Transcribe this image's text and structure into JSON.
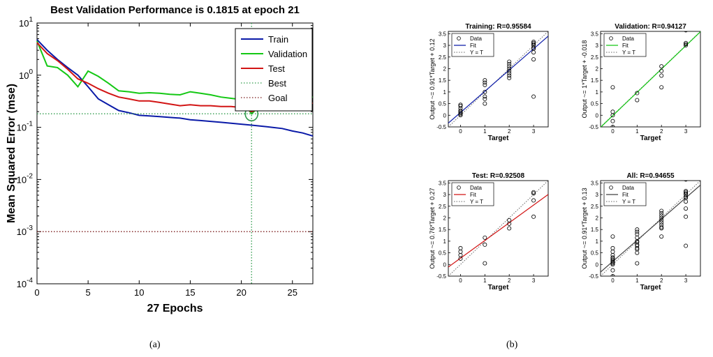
{
  "captions": [
    "(a)",
    "(b)"
  ],
  "colors": {
    "train": "#0a1aa8",
    "validation": "#14c814",
    "test": "#d21414",
    "best": "#2e9a4a",
    "goal": "#7a1a1a",
    "all": "#404040",
    "data_marker": "#000000"
  },
  "chart_data": [
    {
      "id": "performance",
      "type": "line",
      "title": "Best Validation Performance is 0.1815 at epoch 21",
      "xlabel": "27 Epochs",
      "ylabel": "Mean Squared Error  (mse)",
      "xlim": [
        0,
        27
      ],
      "ylim": [
        0.0001,
        10
      ],
      "yscale": "log",
      "xticks": [
        0,
        5,
        10,
        15,
        20,
        25
      ],
      "yticks": [
        {
          "base": "10",
          "exp": "-4",
          "value": 0.0001
        },
        {
          "base": "10",
          "exp": "-3",
          "value": 0.001
        },
        {
          "base": "10",
          "exp": "-2",
          "value": 0.01
        },
        {
          "base": "10",
          "exp": "-1",
          "value": 0.1
        },
        {
          "base": "10",
          "exp": "0",
          "value": 1
        },
        {
          "base": "10",
          "exp": "1",
          "value": 10
        }
      ],
      "legend_position": "top-right",
      "series": [
        {
          "name": "Train",
          "key": "train",
          "style": "solid",
          "x": [
            0,
            1,
            2,
            3,
            4,
            5,
            6,
            7,
            8,
            9,
            10,
            11,
            12,
            13,
            14,
            15,
            16,
            17,
            18,
            19,
            20,
            21,
            22,
            23,
            24,
            25,
            26,
            27
          ],
          "y": [
            4.8,
            3.0,
            2.0,
            1.4,
            1.0,
            0.6,
            0.35,
            0.27,
            0.21,
            0.19,
            0.17,
            0.165,
            0.16,
            0.155,
            0.15,
            0.14,
            0.135,
            0.13,
            0.125,
            0.12,
            0.115,
            0.11,
            0.105,
            0.1,
            0.095,
            0.085,
            0.078,
            0.068
          ]
        },
        {
          "name": "Validation",
          "key": "validation",
          "style": "solid",
          "x": [
            0,
            1,
            2,
            3,
            4,
            5,
            6,
            7,
            8,
            9,
            10,
            11,
            12,
            13,
            14,
            15,
            16,
            17,
            18,
            19,
            20,
            21,
            22,
            23,
            24,
            25,
            26,
            27
          ],
          "y": [
            4.5,
            1.5,
            1.4,
            1.0,
            0.6,
            1.2,
            0.95,
            0.7,
            0.5,
            0.48,
            0.45,
            0.46,
            0.45,
            0.43,
            0.42,
            0.48,
            0.45,
            0.42,
            0.38,
            0.36,
            0.34,
            0.1815,
            0.28,
            0.32,
            0.34,
            0.37,
            0.37,
            0.38
          ]
        },
        {
          "name": "Test",
          "key": "test",
          "style": "solid",
          "x": [
            0,
            1,
            2,
            3,
            4,
            5,
            6,
            7,
            8,
            9,
            10,
            11,
            12,
            13,
            14,
            15,
            16,
            17,
            18,
            19,
            20,
            21,
            22,
            23,
            24,
            25,
            26,
            27
          ],
          "y": [
            4.2,
            2.6,
            1.9,
            1.3,
            0.85,
            0.7,
            0.55,
            0.45,
            0.38,
            0.35,
            0.32,
            0.32,
            0.3,
            0.28,
            0.26,
            0.27,
            0.26,
            0.26,
            0.25,
            0.25,
            0.24,
            0.2,
            0.23,
            0.25,
            0.27,
            0.29,
            0.29,
            0.29
          ]
        },
        {
          "name": "Best",
          "key": "best",
          "style": "dotted",
          "x": [
            0,
            27
          ],
          "y": [
            0.1815,
            0.1815
          ]
        },
        {
          "name": "Goal",
          "key": "goal",
          "style": "dotted",
          "x": [
            0,
            27
          ],
          "y": [
            0.001,
            0.001
          ]
        }
      ],
      "best_marker": {
        "x": 21,
        "y": 0.1815
      }
    },
    {
      "id": "training",
      "type": "scatter",
      "title": "Training: R=0.95584",
      "xlabel": "Target",
      "ylabel": "Output ~= 0.91*Target + 0.12",
      "xlim": [
        -0.5,
        3.6
      ],
      "ylim": [
        -0.5,
        3.6
      ],
      "xticks": [
        0,
        1,
        2,
        3
      ],
      "yticks": [
        -0.5,
        0,
        0.5,
        1,
        1.5,
        2,
        2.5,
        3,
        3.5
      ],
      "legend": [
        "Data",
        "Fit",
        "Y = T"
      ],
      "fit": {
        "slope": 0.91,
        "intercept": 0.12,
        "color_key": "train"
      },
      "points": [
        [
          0,
          0
        ],
        [
          0,
          0.05
        ],
        [
          0,
          0.1
        ],
        [
          0,
          0.15
        ],
        [
          0,
          0.2
        ],
        [
          0,
          0.3
        ],
        [
          0,
          0.4
        ],
        [
          0,
          0.45
        ],
        [
          1,
          0.5
        ],
        [
          1,
          0.7
        ],
        [
          1,
          0.8
        ],
        [
          1,
          1.0
        ],
        [
          1,
          1.3
        ],
        [
          1,
          1.4
        ],
        [
          1,
          1.5
        ],
        [
          2,
          1.6
        ],
        [
          2,
          1.7
        ],
        [
          2,
          1.8
        ],
        [
          2,
          1.9
        ],
        [
          2,
          2.0
        ],
        [
          2,
          2.1
        ],
        [
          2,
          2.2
        ],
        [
          2,
          2.3
        ],
        [
          3,
          0.8
        ],
        [
          3,
          2.4
        ],
        [
          3,
          2.7
        ],
        [
          3,
          2.85
        ],
        [
          3,
          2.9
        ],
        [
          3,
          3.0
        ],
        [
          3,
          3.05
        ],
        [
          3,
          3.1
        ],
        [
          3,
          3.15
        ]
      ]
    },
    {
      "id": "validation",
      "type": "scatter",
      "title": "Validation: R=0.94127",
      "xlabel": "Target",
      "ylabel": "Output ~= 1*Target + -0.018",
      "xlim": [
        -0.5,
        3.6
      ],
      "ylim": [
        -0.5,
        3.6
      ],
      "xticks": [
        0,
        1,
        2,
        3
      ],
      "yticks": [
        -0.5,
        0,
        0.5,
        1,
        1.5,
        2,
        2.5,
        3,
        3.5
      ],
      "legend": [
        "Data",
        "Fit",
        "Y = T"
      ],
      "fit": {
        "slope": 1.0,
        "intercept": -0.018,
        "color_key": "validation"
      },
      "points": [
        [
          0,
          -0.5
        ],
        [
          0,
          -0.25
        ],
        [
          0,
          0
        ],
        [
          0,
          0.15
        ],
        [
          0,
          1.2
        ],
        [
          1,
          0.65
        ],
        [
          1,
          0.95
        ],
        [
          2,
          1.2
        ],
        [
          2,
          1.7
        ],
        [
          2,
          1.9
        ],
        [
          2,
          2.1
        ],
        [
          3,
          3.0
        ],
        [
          3,
          3.05
        ],
        [
          3,
          3.1
        ],
        [
          3,
          3.65
        ]
      ]
    },
    {
      "id": "test",
      "type": "scatter",
      "title": "Test: R=0.92508",
      "xlabel": "Target",
      "ylabel": "Output ~= 0.76*Target + 0.27",
      "xlim": [
        -0.5,
        3.6
      ],
      "ylim": [
        -0.5,
        3.6
      ],
      "xticks": [
        0,
        1,
        2,
        3
      ],
      "yticks": [
        -0.5,
        0,
        0.5,
        1,
        1.5,
        2,
        2.5,
        3,
        3.5
      ],
      "legend": [
        "Data",
        "Fit",
        "Y = T"
      ],
      "fit": {
        "slope": 0.76,
        "intercept": 0.27,
        "color_key": "test"
      },
      "points": [
        [
          0,
          0.25
        ],
        [
          0,
          0.4
        ],
        [
          0,
          0.55
        ],
        [
          0,
          0.7
        ],
        [
          1,
          0.05
        ],
        [
          1,
          0.85
        ],
        [
          1,
          1.15
        ],
        [
          2,
          1.55
        ],
        [
          2,
          1.75
        ],
        [
          2,
          1.9
        ],
        [
          3,
          2.05
        ],
        [
          3,
          2.75
        ],
        [
          3,
          3.05
        ],
        [
          3,
          3.1
        ]
      ]
    },
    {
      "id": "all",
      "type": "scatter",
      "title": "All: R=0.94655",
      "xlabel": "Target",
      "ylabel": "Output ~= 0.91*Target + 0.13",
      "xlim": [
        -0.5,
        3.6
      ],
      "ylim": [
        -0.5,
        3.6
      ],
      "xticks": [
        0,
        1,
        2,
        3
      ],
      "yticks": [
        -0.5,
        0,
        0.5,
        1,
        1.5,
        2,
        2.5,
        3,
        3.5
      ],
      "legend": [
        "Data",
        "Fit",
        "Y = T"
      ],
      "fit": {
        "slope": 0.91,
        "intercept": 0.13,
        "color_key": "all"
      },
      "points": [
        [
          0,
          -0.5
        ],
        [
          0,
          -0.25
        ],
        [
          0,
          0
        ],
        [
          0,
          0.05
        ],
        [
          0,
          0.1
        ],
        [
          0,
          0.15
        ],
        [
          0,
          0.2
        ],
        [
          0,
          0.25
        ],
        [
          0,
          0.3
        ],
        [
          0,
          0.4
        ],
        [
          0,
          0.55
        ],
        [
          0,
          0.7
        ],
        [
          0,
          1.2
        ],
        [
          1,
          0.05
        ],
        [
          1,
          0.5
        ],
        [
          1,
          0.65
        ],
        [
          1,
          0.7
        ],
        [
          1,
          0.8
        ],
        [
          1,
          0.85
        ],
        [
          1,
          0.95
        ],
        [
          1,
          1.0
        ],
        [
          1,
          1.15
        ],
        [
          1,
          1.3
        ],
        [
          1,
          1.4
        ],
        [
          1,
          1.5
        ],
        [
          2,
          1.2
        ],
        [
          2,
          1.55
        ],
        [
          2,
          1.6
        ],
        [
          2,
          1.7
        ],
        [
          2,
          1.8
        ],
        [
          2,
          1.9
        ],
        [
          2,
          2.0
        ],
        [
          2,
          2.1
        ],
        [
          2,
          2.2
        ],
        [
          2,
          2.3
        ],
        [
          3,
          0.8
        ],
        [
          3,
          2.05
        ],
        [
          3,
          2.4
        ],
        [
          3,
          2.7
        ],
        [
          3,
          2.85
        ],
        [
          3,
          2.9
        ],
        [
          3,
          3.0
        ],
        [
          3,
          3.05
        ],
        [
          3,
          3.1
        ],
        [
          3,
          3.15
        ],
        [
          3,
          3.65
        ]
      ]
    }
  ]
}
